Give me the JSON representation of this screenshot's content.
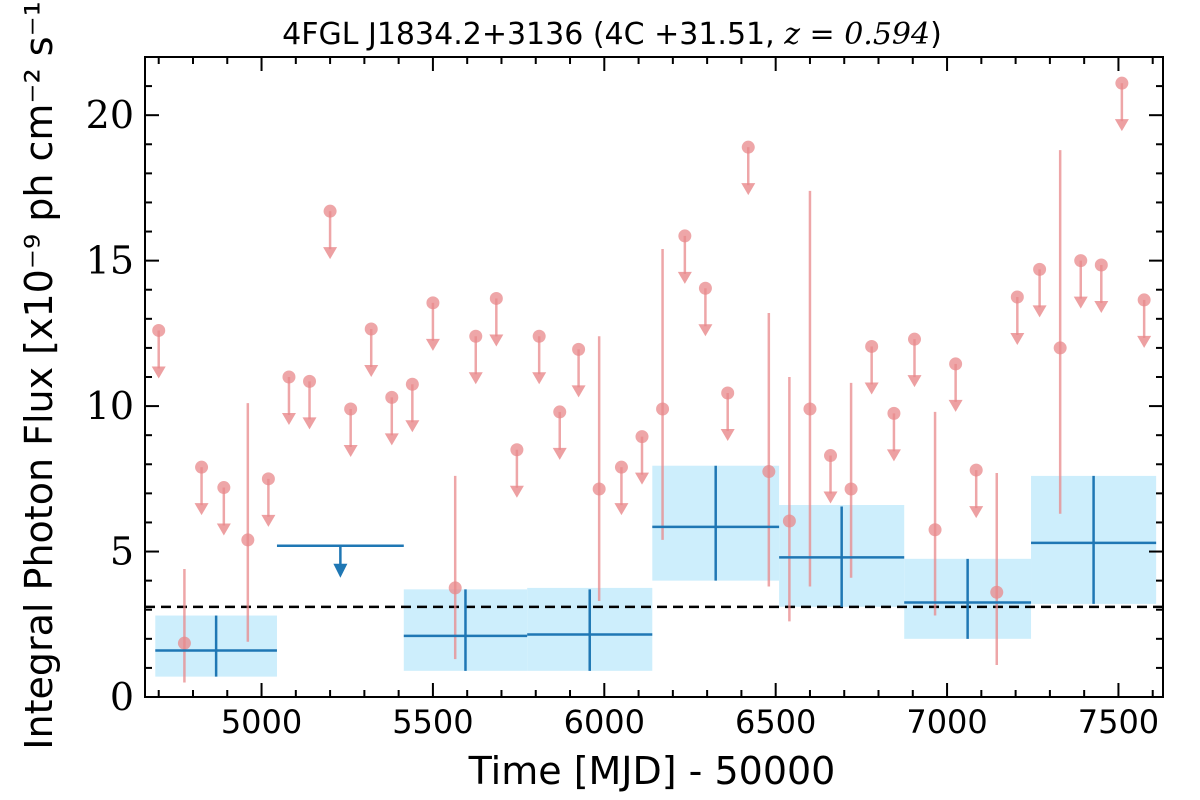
{
  "chart_data": {
    "type": "scatter",
    "title": "4FGL J1834.2+3136 (4C +31.51, z = 0.594)",
    "title_parts": {
      "source": "4FGL J1834.2+3136 (4C +31.51, ",
      "redshift": "z = 0.594",
      "close": ")"
    },
    "xlabel": "Time [MJD] - 50000",
    "ylabel": "Integral Photon Flux [x10⁻⁹ ph cm⁻² s⁻¹]",
    "xlim": [
      4660,
      7630
    ],
    "ylim": [
      0,
      22
    ],
    "xticks": [
      5000,
      5500,
      6000,
      6500,
      7000,
      7500
    ],
    "yticks": [
      0,
      5,
      10,
      15,
      20
    ],
    "x_minor_step": 100,
    "y_minor_step": 1,
    "grid": false,
    "legend": "none",
    "colors": {
      "monthly": "#e8888b",
      "long_bin": "#1f77b4",
      "long_bin_fill": "#cdeefc",
      "reference_line": "#000000"
    },
    "reference_flux": 3.1,
    "series": [
      {
        "kind": "monthly detections",
        "points": [
          {
            "x": 4775,
            "y": 1.85,
            "ylo": 0.5,
            "yhi": 4.4
          },
          {
            "x": 4960,
            "y": 5.4,
            "ylo": 1.9,
            "yhi": 10.1
          },
          {
            "x": 5565,
            "y": 3.75,
            "ylo": 1.3,
            "yhi": 7.6
          },
          {
            "x": 5985,
            "y": 7.15,
            "ylo": 3.3,
            "yhi": 12.4
          },
          {
            "x": 6170,
            "y": 9.9,
            "ylo": 5.4,
            "yhi": 15.4
          },
          {
            "x": 6480,
            "y": 7.75,
            "ylo": 3.8,
            "yhi": 13.2
          },
          {
            "x": 6540,
            "y": 6.05,
            "ylo": 2.6,
            "yhi": 11.0
          },
          {
            "x": 6600,
            "y": 9.9,
            "ylo": 3.8,
            "yhi": 17.4
          },
          {
            "x": 6720,
            "y": 7.15,
            "ylo": 4.1,
            "yhi": 10.8
          },
          {
            "x": 6965,
            "y": 5.75,
            "ylo": 2.8,
            "yhi": 9.8
          },
          {
            "x": 7145,
            "y": 3.6,
            "ylo": 1.1,
            "yhi": 7.7
          },
          {
            "x": 7330,
            "y": 12.0,
            "ylo": 6.3,
            "yhi": 18.8
          }
        ]
      },
      {
        "kind": "monthly upper limits",
        "points": [
          {
            "x": 4700,
            "y": 12.6
          },
          {
            "x": 4825,
            "y": 7.9
          },
          {
            "x": 4890,
            "y": 7.2
          },
          {
            "x": 5020,
            "y": 7.5
          },
          {
            "x": 5080,
            "y": 11.0
          },
          {
            "x": 5140,
            "y": 10.85
          },
          {
            "x": 5200,
            "y": 16.7
          },
          {
            "x": 5260,
            "y": 9.9
          },
          {
            "x": 5320,
            "y": 12.65
          },
          {
            "x": 5380,
            "y": 10.3
          },
          {
            "x": 5440,
            "y": 10.75
          },
          {
            "x": 5500,
            "y": 13.55
          },
          {
            "x": 5625,
            "y": 12.4
          },
          {
            "x": 5685,
            "y": 13.7
          },
          {
            "x": 5745,
            "y": 8.5
          },
          {
            "x": 5810,
            "y": 12.4
          },
          {
            "x": 5870,
            "y": 9.8
          },
          {
            "x": 5925,
            "y": 11.95
          },
          {
            "x": 6050,
            "y": 7.9
          },
          {
            "x": 6110,
            "y": 8.95
          },
          {
            "x": 6235,
            "y": 15.85
          },
          {
            "x": 6295,
            "y": 14.05
          },
          {
            "x": 6360,
            "y": 10.45
          },
          {
            "x": 6420,
            "y": 18.9
          },
          {
            "x": 6660,
            "y": 8.3
          },
          {
            "x": 6780,
            "y": 12.05
          },
          {
            "x": 6845,
            "y": 9.75
          },
          {
            "x": 6905,
            "y": 12.3
          },
          {
            "x": 7025,
            "y": 11.45
          },
          {
            "x": 7085,
            "y": 7.8
          },
          {
            "x": 7205,
            "y": 13.75
          },
          {
            "x": 7270,
            "y": 14.7
          },
          {
            "x": 7390,
            "y": 15.0
          },
          {
            "x": 7450,
            "y": 14.85
          },
          {
            "x": 7510,
            "y": 21.1
          },
          {
            "x": 7575,
            "y": 13.65
          }
        ]
      },
      {
        "kind": "long bins",
        "bins": [
          {
            "x0": 4690,
            "x1": 5045,
            "y": 1.6,
            "ylo": 0.7,
            "yhi": 2.8,
            "band_lo": 0.7,
            "band_hi": 2.8
          },
          {
            "x0": 5415,
            "x1": 5775,
            "y": 2.1,
            "ylo": 0.9,
            "yhi": 3.7,
            "band_lo": 0.9,
            "band_hi": 3.7
          },
          {
            "x0": 5775,
            "x1": 6140,
            "y": 2.15,
            "ylo": 0.9,
            "yhi": 3.7,
            "band_lo": 0.9,
            "band_hi": 3.75
          },
          {
            "x0": 6140,
            "x1": 6510,
            "y": 5.85,
            "ylo": 4.0,
            "yhi": 7.95,
            "band_lo": 4.0,
            "band_hi": 7.95
          },
          {
            "x0": 6510,
            "x1": 6875,
            "y": 4.8,
            "ylo": 3.1,
            "yhi": 6.55,
            "band_lo": 3.1,
            "band_hi": 6.6
          },
          {
            "x0": 6875,
            "x1": 7245,
            "y": 3.25,
            "ylo": 2.0,
            "yhi": 4.75,
            "band_lo": 2.0,
            "band_hi": 4.75
          },
          {
            "x0": 7245,
            "x1": 7610,
            "y": 5.3,
            "ylo": 3.2,
            "yhi": 7.6,
            "band_lo": 3.2,
            "band_hi": 7.6
          }
        ],
        "upper_limits": [
          {
            "x0": 5045,
            "x1": 5415,
            "y": 5.2
          }
        ]
      }
    ]
  }
}
